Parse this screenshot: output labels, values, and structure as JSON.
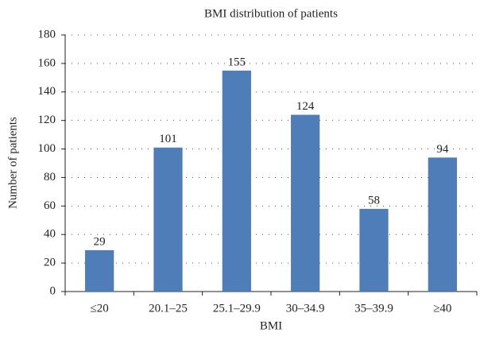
{
  "chart_data": {
    "type": "bar",
    "title": "BMI distribution of patients",
    "x_label": "BMI",
    "y_label": "Number of patients",
    "categories": [
      "≤20",
      "20.1–25",
      "25.1–29.9",
      "30–34.9",
      "35–39.9",
      "≥40"
    ],
    "values": [
      29,
      101,
      155,
      124,
      58,
      94
    ],
    "color": "#4f7db8",
    "ylim": [
      0,
      180
    ],
    "yticks": [
      0,
      20,
      40,
      60,
      80,
      100,
      120,
      140,
      160,
      180
    ],
    "grid": true
  }
}
